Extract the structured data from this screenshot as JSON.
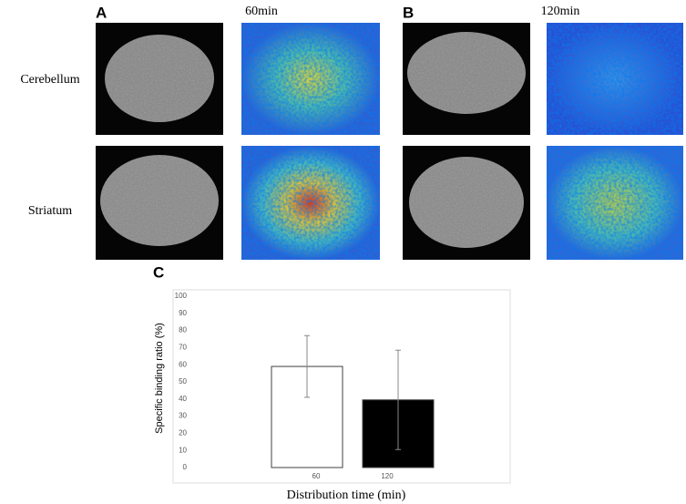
{
  "figure": {
    "panels": [
      "A",
      "B",
      "C"
    ],
    "columns": [
      "60min",
      "120min"
    ],
    "rows": [
      "Cerebellum",
      "Striatum"
    ]
  },
  "chart_data": {
    "type": "bar",
    "x_label": "Distribution time (min)",
    "y_label": "Specific binding ratio (%)",
    "categories": [
      "60",
      "120"
    ],
    "values": [
      59,
      39.5
    ],
    "errors": [
      18,
      29
    ],
    "colors": [
      "#ffffff",
      "#000000"
    ],
    "edge_color": "#404040",
    "ylim": [
      0,
      100
    ],
    "yticks": [
      0,
      10,
      20,
      30,
      40,
      50,
      60,
      70,
      80,
      90,
      100
    ],
    "grid": false
  }
}
